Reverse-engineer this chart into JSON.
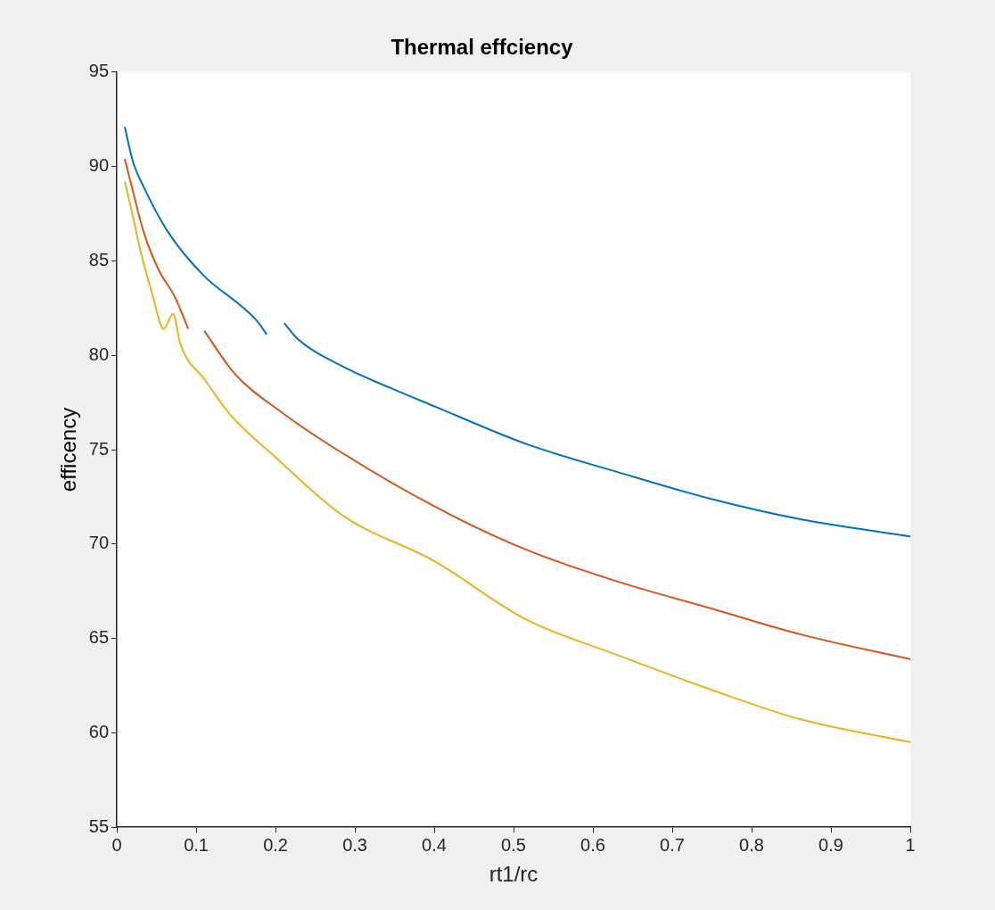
{
  "chart_data": {
    "type": "line",
    "title": "Thermal effciency",
    "xlabel": "rt1/rc",
    "ylabel": "efficency",
    "series": [
      {
        "color": "#0072bd",
        "x": [
          0.01,
          0.02,
          0.034,
          0.065,
          0.11,
          0.157,
          0.177,
          0.189,
          0.2,
          0.211,
          0.227,
          0.285,
          0.343,
          0.4,
          0.516,
          0.632,
          0.748,
          0.863,
          1.0
        ],
        "values": [
          92.1,
          90.3,
          88.9,
          86.5,
          84.2,
          82.6,
          81.8,
          81.1,
          null,
          81.7,
          80.9,
          79.4,
          78.3,
          77.3,
          75.3,
          73.8,
          72.4,
          71.3,
          70.4
        ]
      },
      {
        "color": "#d95319",
        "x": [
          0.01,
          0.019,
          0.034,
          0.053,
          0.073,
          0.09,
          0.1,
          0.11,
          0.149,
          0.207,
          0.285,
          0.4,
          0.516,
          0.632,
          0.748,
          0.863,
          1.0
        ],
        "values": [
          90.4,
          88.9,
          86.5,
          84.5,
          83.1,
          81.4,
          null,
          81.3,
          79.0,
          77.0,
          74.8,
          72.0,
          69.7,
          68.0,
          66.6,
          65.2,
          63.9
        ]
      },
      {
        "color": "#edb120",
        "x": [
          0.01,
          0.019,
          0.03,
          0.045,
          0.059,
          0.071,
          0.08,
          0.111,
          0.142,
          0.2,
          0.285,
          0.4,
          0.516,
          0.632,
          0.748,
          0.863,
          1.0
        ],
        "values": [
          89.2,
          87.6,
          85.5,
          83.2,
          81.4,
          82.2,
          80.6,
          78.7,
          76.9,
          74.6,
          71.5,
          69.1,
          66.0,
          64.1,
          62.3,
          60.7,
          59.5
        ]
      }
    ],
    "xlim": [
      0,
      1
    ],
    "xticks": [
      0,
      0.1,
      0.2,
      0.3,
      0.4,
      0.5,
      0.6,
      0.7,
      0.8,
      0.9,
      1
    ],
    "ylim": [
      55,
      95
    ],
    "yticks": [
      55,
      60,
      65,
      70,
      75,
      80,
      85,
      90,
      95
    ],
    "grid": false,
    "legend": false,
    "marker": "none",
    "line_style": "solid"
  }
}
